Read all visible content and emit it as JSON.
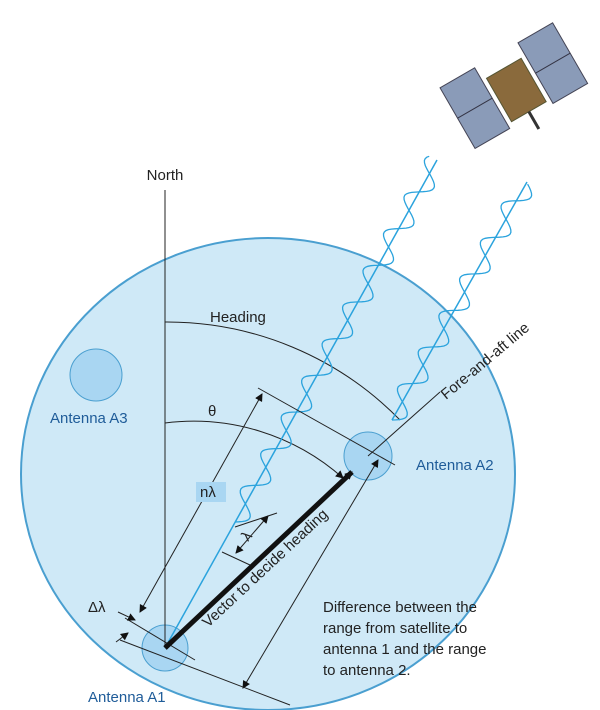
{
  "labels": {
    "north": "North",
    "heading": "Heading",
    "fore_aft": "Fore-and-aft line",
    "theta": "θ",
    "n_lambda": "nλ",
    "lambda": "λ",
    "delta_lambda": "Δλ",
    "vector": "Vector to decide heading"
  },
  "antennas": [
    "Antenna A1",
    "Antenna A2",
    "Antenna A3"
  ],
  "note": [
    "Difference between the",
    "range from satellite to",
    "antenna 1 and the range",
    "to antenna 2."
  ]
}
